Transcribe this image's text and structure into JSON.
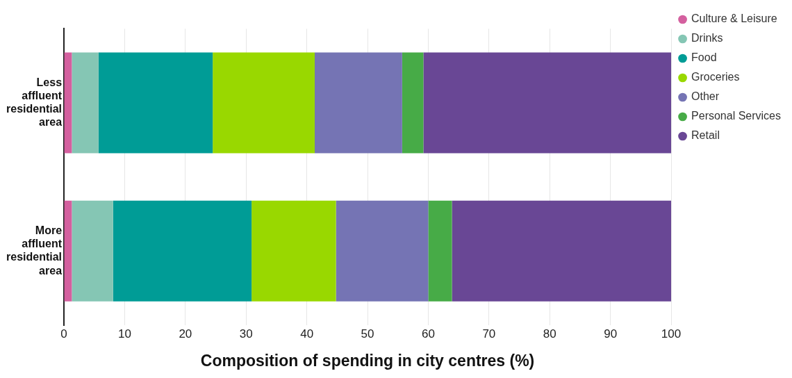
{
  "chart_data": {
    "type": "bar",
    "orientation": "horizontal",
    "stacked": true,
    "xlabel": "Composition of spending in city centres (%)",
    "categories": [
      "Less affluent residential area",
      "More affluent residential area"
    ],
    "series": [
      {
        "name": "Culture & Leisure",
        "color": "#d4609f",
        "values": [
          1.3,
          1.3
        ]
      },
      {
        "name": "Drinks",
        "color": "#85c6b4",
        "values": [
          4.4,
          6.8
        ]
      },
      {
        "name": "Food",
        "color": "#009c96",
        "values": [
          18.8,
          22.8
        ]
      },
      {
        "name": "Groceries",
        "color": "#99d800",
        "values": [
          16.8,
          13.9
        ]
      },
      {
        "name": "Other",
        "color": "#7574b4",
        "values": [
          14.4,
          15.2
        ]
      },
      {
        "name": "Personal Services",
        "color": "#47ab47",
        "values": [
          3.5,
          3.9
        ]
      },
      {
        "name": "Retail",
        "color": "#694795",
        "values": [
          40.8,
          36.1
        ]
      }
    ],
    "xlim": [
      0,
      100
    ],
    "xticks": [
      0,
      10,
      20,
      30,
      40,
      50,
      60,
      70,
      80,
      90,
      100
    ],
    "grid": "x",
    "legend": "top right"
  }
}
